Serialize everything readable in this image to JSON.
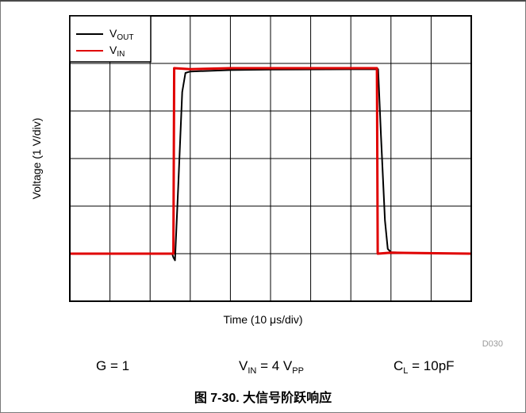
{
  "chart_data": {
    "type": "line",
    "xlabel_prefix": "Time (10 ",
    "xlabel_unit": "μs/div)",
    "ylabel": "Voltage (1 V/div)",
    "x_divisions": 10,
    "y_divisions": 6,
    "grid": true,
    "legend_position": "top-left",
    "series": [
      {
        "name": "V",
        "sub": "OUT",
        "color": "#000000",
        "points": [
          [
            0,
            1
          ],
          [
            2.55,
            1
          ],
          [
            2.58,
            0.92
          ],
          [
            2.62,
            0.86
          ],
          [
            2.7,
            2.4
          ],
          [
            2.8,
            4.4
          ],
          [
            2.88,
            4.8
          ],
          [
            3.0,
            4.83
          ],
          [
            4.0,
            4.86
          ],
          [
            5.0,
            4.87
          ],
          [
            7.68,
            4.88
          ],
          [
            7.75,
            3.5
          ],
          [
            7.85,
            1.7
          ],
          [
            7.92,
            1.1
          ],
          [
            8.0,
            1.03
          ],
          [
            8.3,
            1.02
          ],
          [
            10,
            1.0
          ]
        ]
      },
      {
        "name": "V",
        "sub": "IN",
        "color": "#e00000",
        "points": [
          [
            0,
            1
          ],
          [
            2.55,
            1
          ],
          [
            2.58,
            1
          ],
          [
            2.6,
            4.9
          ],
          [
            3.0,
            4.88
          ],
          [
            4.0,
            4.9
          ],
          [
            5.0,
            4.9
          ],
          [
            7.65,
            4.9
          ],
          [
            7.67,
            1.0
          ],
          [
            8.0,
            1.02
          ],
          [
            10,
            1.0
          ]
        ]
      }
    ]
  },
  "tag": "D030",
  "conditions": {
    "gain": "G = 1",
    "vin_prefix": "V",
    "vin_sub": "IN",
    "vin_mid": " = 4 V",
    "vin_sub2": "PP",
    "cl_prefix": "C",
    "cl_sub": "L",
    "cl_rest": " = 10pF"
  },
  "caption": "图 7-30. 大信号阶跃响应"
}
